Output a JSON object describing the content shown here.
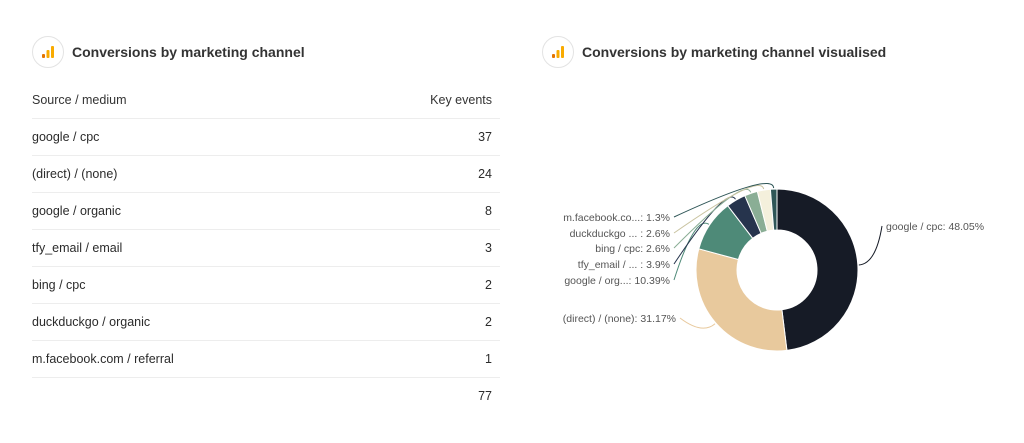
{
  "left_panel": {
    "icon": "analytics-bars-icon",
    "title": "Conversions by marketing channel",
    "columns": [
      "Source / medium",
      "Key events"
    ],
    "rows": [
      {
        "source": "google / cpc",
        "value": "37"
      },
      {
        "source": "(direct) / (none)",
        "value": "24"
      },
      {
        "source": "google / organic",
        "value": "8"
      },
      {
        "source": "tfy_email / email",
        "value": "3"
      },
      {
        "source": "bing / cpc",
        "value": "2"
      },
      {
        "source": "duckduckgo / organic",
        "value": "2"
      },
      {
        "source": "m.facebook.com / referral",
        "value": "1"
      }
    ],
    "total": "77"
  },
  "right_panel": {
    "icon": "analytics-bars-icon",
    "title": "Conversions by marketing channel visualised"
  },
  "chart_data": {
    "type": "pie",
    "variant": "donut",
    "title": "Conversions by marketing channel visualised",
    "slices": [
      {
        "label": "google / cpc: 48.05%",
        "name": "google / cpc",
        "value": 48.05,
        "color": "#161b26"
      },
      {
        "label": "(direct) / (none): 31.17%",
        "name": "(direct) / (none)",
        "value": 31.17,
        "color": "#e8c99d"
      },
      {
        "label": "google / org...: 10.39%",
        "name": "google / organic",
        "value": 10.39,
        "color": "#4e8a78"
      },
      {
        "label": "tfy_email / ... : 3.9%",
        "name": "tfy_email / email",
        "value": 3.9,
        "color": "#26344d"
      },
      {
        "label": "bing / cpc: 2.6%",
        "name": "bing / cpc",
        "value": 2.6,
        "color": "#8aae95"
      },
      {
        "label": "duckduckgo ... : 2.6%",
        "name": "duckduckgo / organic",
        "value": 2.6,
        "color": "#f4f0dc"
      },
      {
        "label": "m.facebook.co...: 1.3%",
        "name": "m.facebook.com / referral",
        "value": 1.3,
        "color": "#2f5657"
      }
    ]
  }
}
